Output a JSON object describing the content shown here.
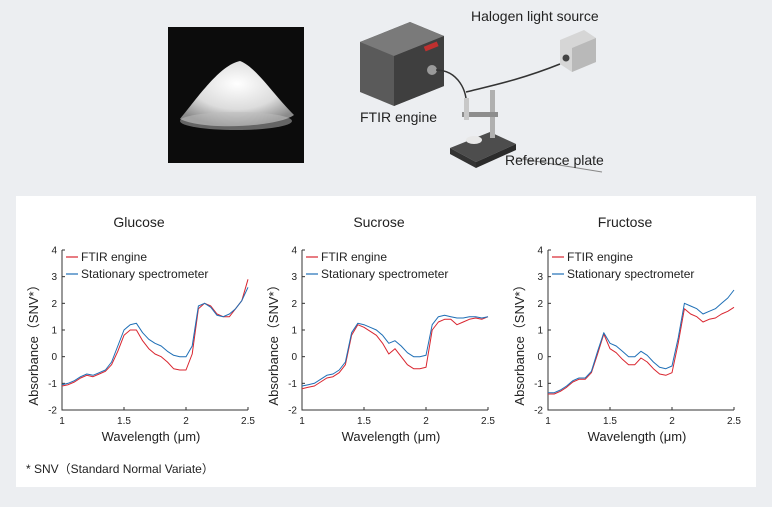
{
  "setup": {
    "light_source_label": "Halogen light source",
    "engine_label": "FTIR engine",
    "plate_label": "Reference plate"
  },
  "footnote": "* SNV（Standard Normal Variate）",
  "colors": {
    "ftir": "#d9252f",
    "stationary": "#1f6fb6"
  },
  "chart_data": [
    {
      "type": "line",
      "title": "Glucose",
      "xlabel": "Wavelength (μm)",
      "ylabel": "Absorbance（SNV*）",
      "xlim": [
        1,
        2.5
      ],
      "ylim": [
        -2,
        4
      ],
      "xticks": [
        "1",
        "1.5",
        "2",
        "2.5"
      ],
      "yticks": [
        "-2",
        "-1",
        "0",
        "1",
        "2",
        "3",
        "4"
      ],
      "legend": "top-left",
      "series": [
        {
          "name": "FTIR engine",
          "x": [
            1.0,
            1.05,
            1.1,
            1.15,
            1.2,
            1.25,
            1.3,
            1.35,
            1.4,
            1.45,
            1.5,
            1.55,
            1.6,
            1.65,
            1.7,
            1.75,
            1.8,
            1.85,
            1.9,
            1.95,
            2.0,
            2.05,
            2.1,
            2.15,
            2.2,
            2.25,
            2.3,
            2.35,
            2.4,
            2.45,
            2.5
          ],
          "y": [
            -1.1,
            -1.05,
            -0.95,
            -0.8,
            -0.7,
            -0.75,
            -0.65,
            -0.55,
            -0.3,
            0.2,
            0.8,
            1.0,
            1.0,
            0.6,
            0.3,
            0.1,
            0.0,
            -0.2,
            -0.45,
            -0.5,
            -0.5,
            0.1,
            1.8,
            2.0,
            1.9,
            1.6,
            1.5,
            1.5,
            1.8,
            2.1,
            2.9
          ]
        },
        {
          "name": "Stationary spectrometer",
          "x": [
            1.0,
            1.05,
            1.1,
            1.15,
            1.2,
            1.25,
            1.3,
            1.35,
            1.4,
            1.45,
            1.5,
            1.55,
            1.6,
            1.65,
            1.7,
            1.75,
            1.8,
            1.85,
            1.9,
            1.95,
            2.0,
            2.05,
            2.1,
            2.15,
            2.2,
            2.25,
            2.3,
            2.35,
            2.4,
            2.45,
            2.5
          ],
          "y": [
            -1.05,
            -1.0,
            -0.9,
            -0.75,
            -0.65,
            -0.7,
            -0.6,
            -0.5,
            -0.2,
            0.4,
            1.0,
            1.2,
            1.25,
            0.9,
            0.65,
            0.5,
            0.4,
            0.2,
            0.05,
            0.0,
            0.0,
            0.4,
            1.9,
            2.0,
            1.85,
            1.55,
            1.5,
            1.6,
            1.8,
            2.1,
            2.6
          ]
        }
      ]
    },
    {
      "type": "line",
      "title": "Sucrose",
      "xlabel": "Wavelength (μm)",
      "ylabel": "Absorbance（SNV*）",
      "xlim": [
        1,
        2.5
      ],
      "ylim": [
        -2,
        4
      ],
      "xticks": [
        "1",
        "1.5",
        "2",
        "2.5"
      ],
      "yticks": [
        "-2",
        "-1",
        "0",
        "1",
        "2",
        "3",
        "4"
      ],
      "legend": "top-left",
      "series": [
        {
          "name": "FTIR engine",
          "x": [
            1.0,
            1.05,
            1.1,
            1.15,
            1.2,
            1.25,
            1.3,
            1.35,
            1.4,
            1.45,
            1.5,
            1.55,
            1.6,
            1.65,
            1.7,
            1.75,
            1.8,
            1.85,
            1.9,
            1.95,
            2.0,
            2.05,
            2.1,
            2.15,
            2.2,
            2.25,
            2.3,
            2.35,
            2.4,
            2.45,
            2.5
          ],
          "y": [
            -1.2,
            -1.15,
            -1.1,
            -0.95,
            -0.8,
            -0.75,
            -0.6,
            -0.3,
            0.8,
            1.2,
            1.1,
            0.95,
            0.8,
            0.5,
            0.1,
            0.3,
            0.0,
            -0.3,
            -0.45,
            -0.45,
            -0.4,
            1.0,
            1.3,
            1.4,
            1.4,
            1.2,
            1.3,
            1.4,
            1.45,
            1.4,
            1.5
          ]
        },
        {
          "name": "Stationary spectrometer",
          "x": [
            1.0,
            1.05,
            1.1,
            1.15,
            1.2,
            1.25,
            1.3,
            1.35,
            1.4,
            1.45,
            1.5,
            1.55,
            1.6,
            1.65,
            1.7,
            1.75,
            1.8,
            1.85,
            1.9,
            1.95,
            2.0,
            2.05,
            2.1,
            2.15,
            2.2,
            2.25,
            2.3,
            2.35,
            2.4,
            2.45,
            2.5
          ],
          "y": [
            -1.1,
            -1.05,
            -1.0,
            -0.85,
            -0.7,
            -0.65,
            -0.5,
            -0.2,
            0.9,
            1.25,
            1.2,
            1.1,
            1.0,
            0.8,
            0.5,
            0.6,
            0.4,
            0.15,
            0.0,
            0.0,
            0.05,
            1.2,
            1.5,
            1.55,
            1.5,
            1.45,
            1.45,
            1.5,
            1.5,
            1.45,
            1.5
          ]
        }
      ]
    },
    {
      "type": "line",
      "title": "Fructose",
      "xlabel": "Wavelength (μm)",
      "ylabel": "Absorbance（SNV*）",
      "xlim": [
        1,
        2.5
      ],
      "ylim": [
        -2,
        4
      ],
      "xticks": [
        "1",
        "1.5",
        "2",
        "2.5"
      ],
      "yticks": [
        "-2",
        "-1",
        "0",
        "1",
        "2",
        "3",
        "4"
      ],
      "legend": "top-left",
      "series": [
        {
          "name": "FTIR engine",
          "x": [
            1.0,
            1.05,
            1.1,
            1.15,
            1.2,
            1.25,
            1.3,
            1.35,
            1.4,
            1.45,
            1.5,
            1.55,
            1.6,
            1.65,
            1.7,
            1.75,
            1.8,
            1.85,
            1.9,
            1.95,
            2.0,
            2.05,
            2.1,
            2.15,
            2.2,
            2.25,
            2.3,
            2.35,
            2.4,
            2.45,
            2.5
          ],
          "y": [
            -1.4,
            -1.4,
            -1.3,
            -1.15,
            -0.95,
            -0.85,
            -0.85,
            -0.6,
            0.1,
            0.85,
            0.3,
            0.15,
            -0.1,
            -0.3,
            -0.3,
            -0.05,
            -0.2,
            -0.45,
            -0.65,
            -0.7,
            -0.6,
            0.5,
            1.8,
            1.6,
            1.5,
            1.3,
            1.4,
            1.45,
            1.6,
            1.7,
            1.85
          ]
        },
        {
          "name": "Stationary spectrometer",
          "x": [
            1.0,
            1.05,
            1.1,
            1.15,
            1.2,
            1.25,
            1.3,
            1.35,
            1.4,
            1.45,
            1.5,
            1.55,
            1.6,
            1.65,
            1.7,
            1.75,
            1.8,
            1.85,
            1.9,
            1.95,
            2.0,
            2.05,
            2.1,
            2.15,
            2.2,
            2.25,
            2.3,
            2.35,
            2.4,
            2.45,
            2.5
          ],
          "y": [
            -1.35,
            -1.35,
            -1.25,
            -1.1,
            -0.9,
            -0.8,
            -0.8,
            -0.55,
            0.2,
            0.9,
            0.5,
            0.4,
            0.2,
            0.0,
            0.0,
            0.2,
            0.05,
            -0.2,
            -0.4,
            -0.45,
            -0.35,
            0.7,
            2.0,
            1.9,
            1.8,
            1.6,
            1.7,
            1.8,
            2.0,
            2.2,
            2.5
          ]
        }
      ]
    }
  ]
}
